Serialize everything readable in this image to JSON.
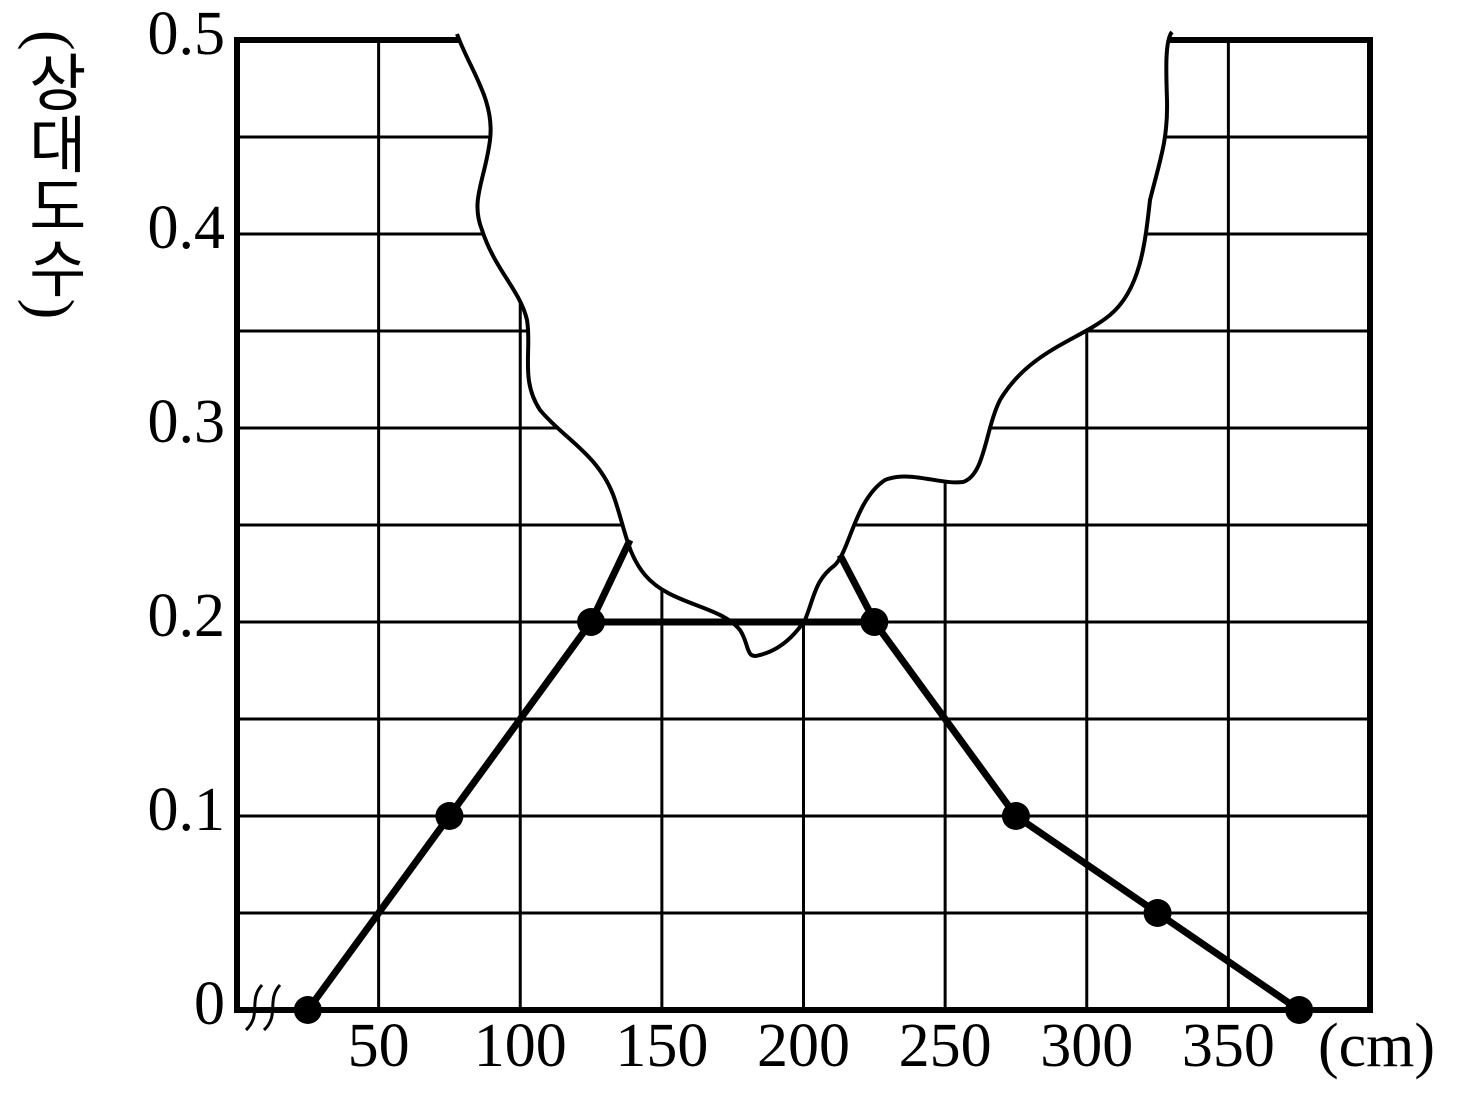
{
  "chart_data": {
    "type": "line",
    "y_label": "(상대도수)",
    "x_unit": "(cm)",
    "x": [
      25,
      75,
      125,
      225,
      275,
      325,
      375
    ],
    "series": [
      {
        "name": null,
        "color": "#000000",
        "values": [
          0,
          0.1,
          0.2,
          0.2,
          0.1,
          0.05,
          0
        ]
      }
    ],
    "xlim": [
      0,
      400
    ],
    "xticks": [
      50,
      100,
      150,
      200,
      250,
      300,
      350
    ],
    "ylim": [
      0,
      0.5
    ],
    "yticks": [
      0,
      0.1,
      0.2,
      0.3,
      0.4,
      0.5
    ],
    "minor_yticks": [
      0.05,
      0.15,
      0.25,
      0.35,
      0.45
    ],
    "grid": true
  }
}
